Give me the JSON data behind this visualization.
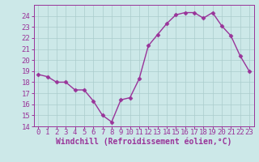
{
  "x": [
    0,
    1,
    2,
    3,
    4,
    5,
    6,
    7,
    8,
    9,
    10,
    11,
    12,
    13,
    14,
    15,
    16,
    17,
    18,
    19,
    20,
    21,
    22,
    23
  ],
  "y": [
    18.7,
    18.5,
    18.0,
    18.0,
    17.3,
    17.3,
    16.3,
    15.0,
    14.4,
    16.4,
    16.6,
    18.3,
    21.3,
    22.3,
    23.3,
    24.1,
    24.3,
    24.3,
    23.8,
    24.3,
    23.1,
    22.2,
    20.4,
    19.0
  ],
  "line_color": "#993399",
  "marker": "D",
  "markersize": 2.5,
  "linewidth": 1.0,
  "bg_color": "#cce8e8",
  "grid_color": "#aacccc",
  "xlabel": "Windchill (Refroidissement éolien,°C)",
  "ylabel": "",
  "xlim": [
    -0.5,
    23.5
  ],
  "ylim": [
    14,
    25
  ],
  "xticks": [
    0,
    1,
    2,
    3,
    4,
    5,
    6,
    7,
    8,
    9,
    10,
    11,
    12,
    13,
    14,
    15,
    16,
    17,
    18,
    19,
    20,
    21,
    22,
    23
  ],
  "yticks": [
    14,
    15,
    16,
    17,
    18,
    19,
    20,
    21,
    22,
    23,
    24
  ],
  "tick_color": "#993399",
  "tick_fontsize": 6.5,
  "xlabel_fontsize": 7.0,
  "xlabel_color": "#993399"
}
